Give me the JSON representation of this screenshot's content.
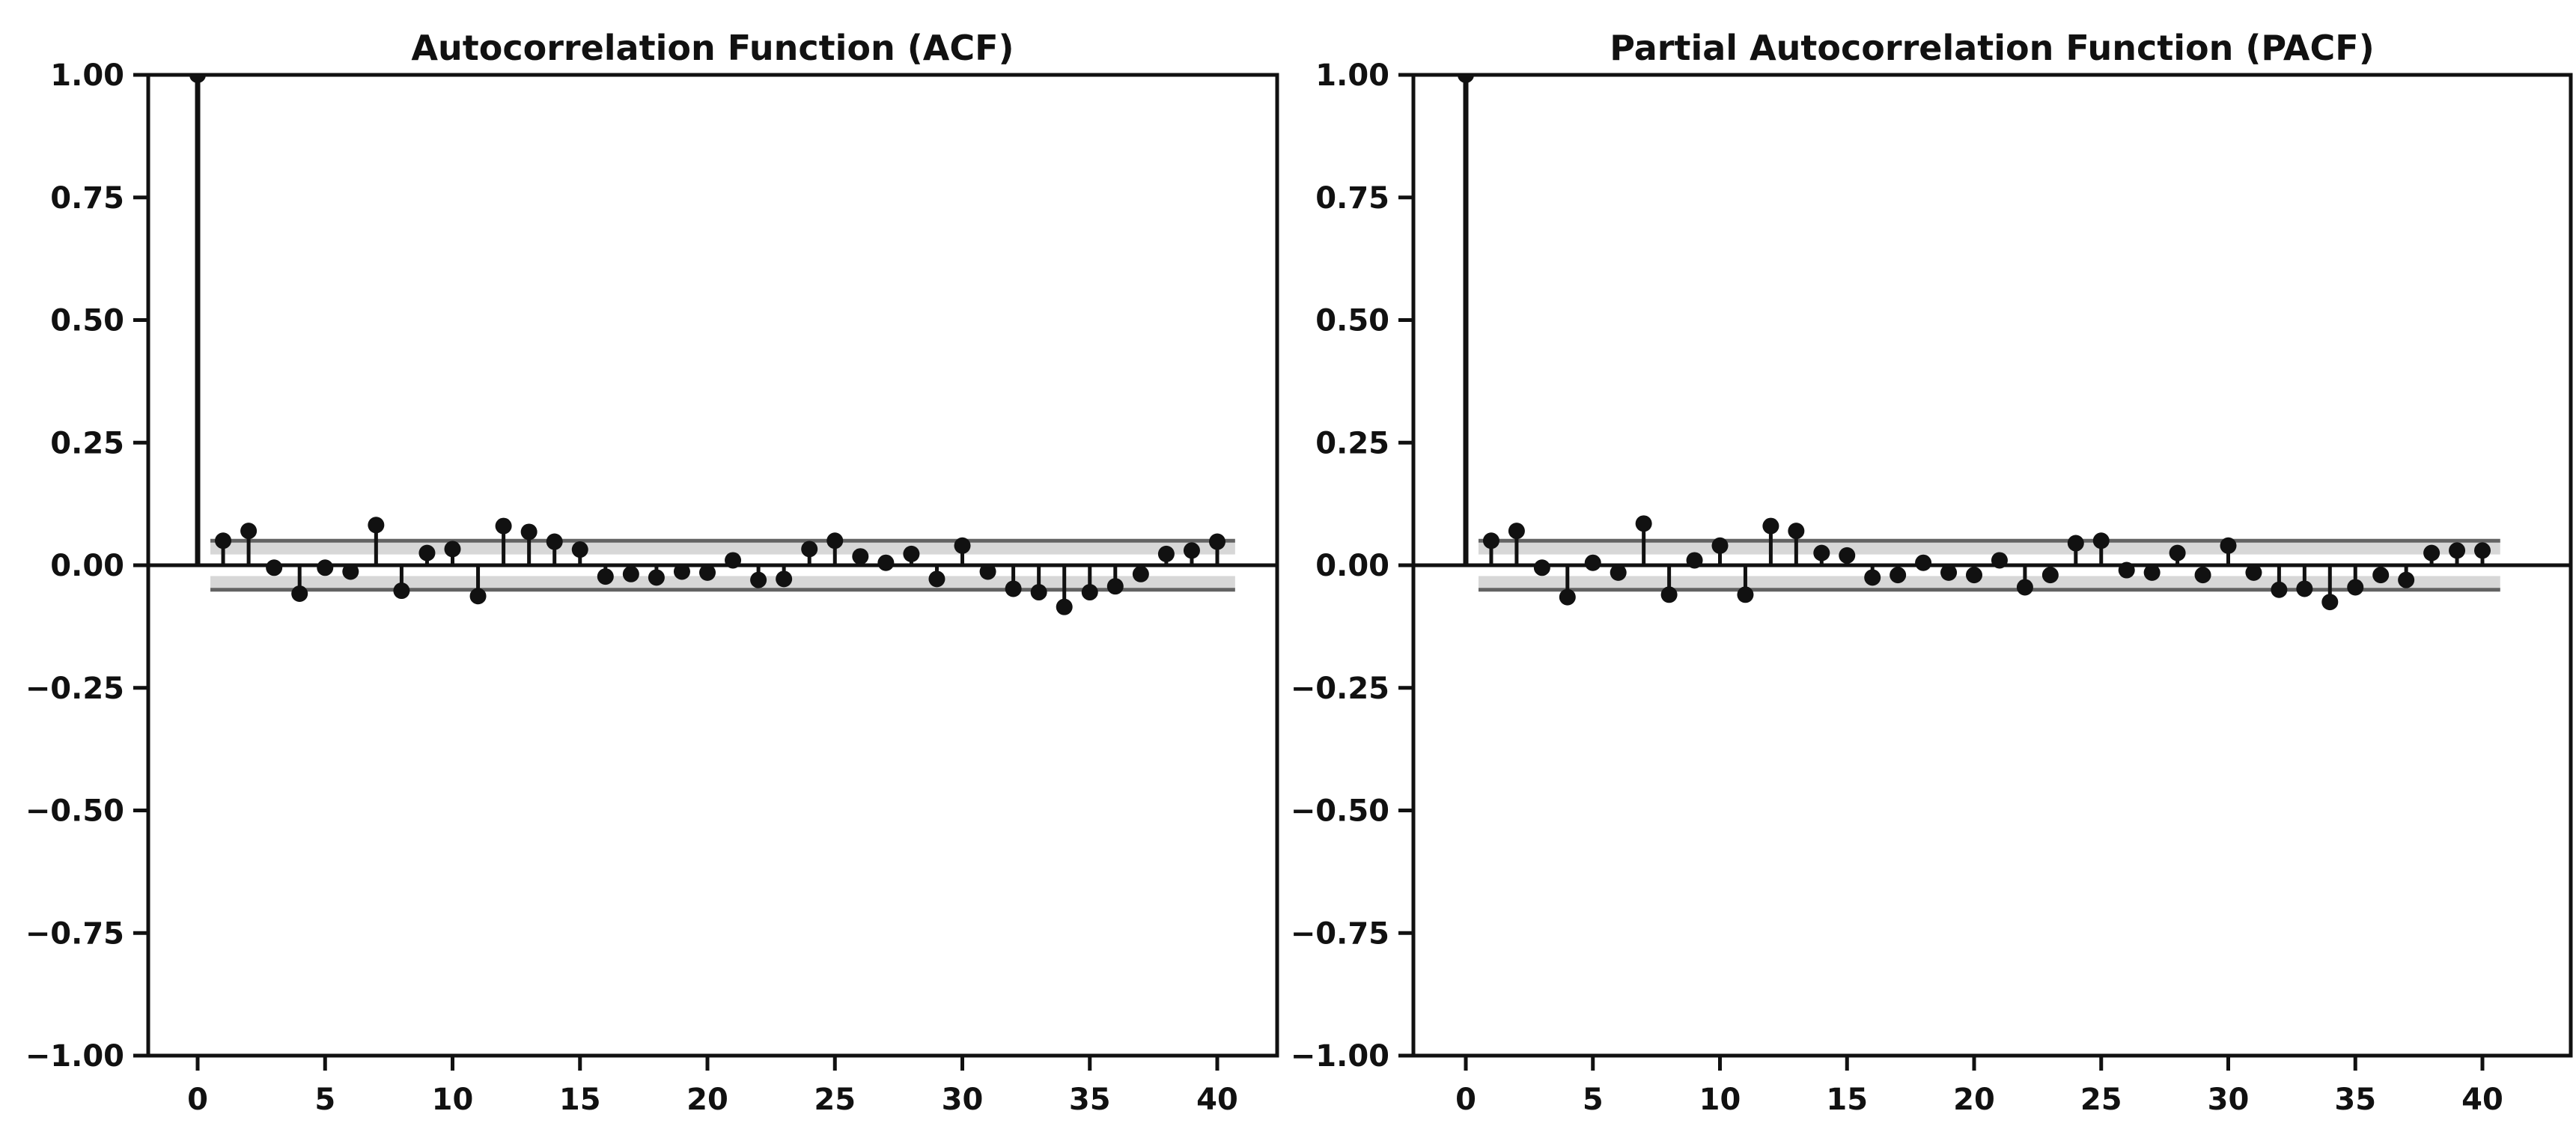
{
  "figure": {
    "background": "#ffffff"
  },
  "style": {
    "ink": "#111111",
    "band_fill": "#d7d7d7",
    "band_edge": "#636363"
  },
  "chart_data": [
    {
      "type": "stem",
      "title": "Autocorrelation Function (ACF)",
      "xlabel": "",
      "ylabel": "",
      "xlim": [
        -2,
        42.4
      ],
      "ylim": [
        -1,
        1
      ],
      "x_ticks": [
        0,
        5,
        10,
        15,
        20,
        25,
        30,
        35,
        40
      ],
      "x_tick_labels": [
        "0",
        "5",
        "10",
        "15",
        "20",
        "25",
        "30",
        "35",
        "40"
      ],
      "y_ticks": [
        1.0,
        0.75,
        0.5,
        0.25,
        0.0,
        -0.25,
        -0.5,
        -0.75,
        -1.0
      ],
      "y_tick_labels": [
        "1.00",
        "0.75",
        "0.50",
        "0.25",
        "0.00",
        "−0.25",
        "−0.50",
        "−0.75",
        "−1.00"
      ],
      "confidence_band": {
        "lower": -0.05,
        "upper": 0.05
      },
      "lags": [
        0,
        1,
        2,
        3,
        4,
        5,
        6,
        7,
        8,
        9,
        10,
        11,
        12,
        13,
        14,
        15,
        16,
        17,
        18,
        19,
        20,
        21,
        22,
        23,
        24,
        25,
        26,
        27,
        28,
        29,
        30,
        31,
        32,
        33,
        34,
        35,
        36,
        37,
        38,
        39,
        40
      ],
      "values": [
        1.0,
        0.05,
        0.07,
        -0.005,
        -0.058,
        -0.005,
        -0.013,
        0.082,
        -0.052,
        0.025,
        0.033,
        -0.063,
        0.08,
        0.068,
        0.048,
        0.032,
        -0.023,
        -0.018,
        -0.025,
        -0.013,
        -0.015,
        0.01,
        -0.03,
        -0.028,
        0.033,
        0.05,
        0.018,
        0.005,
        0.023,
        -0.028,
        0.04,
        -0.013,
        -0.048,
        -0.055,
        -0.085,
        -0.055,
        -0.043,
        -0.018,
        0.023,
        0.03,
        0.048
      ]
    },
    {
      "type": "stem",
      "title": "Partial Autocorrelation Function (PACF)",
      "xlabel": "",
      "ylabel": "",
      "xlim": [
        -2,
        43.5
      ],
      "ylim": [
        -1,
        1
      ],
      "x_ticks": [
        0,
        5,
        10,
        15,
        20,
        25,
        30,
        35,
        40
      ],
      "x_tick_labels": [
        "0",
        "5",
        "10",
        "15",
        "20",
        "25",
        "30",
        "35",
        "40"
      ],
      "y_ticks": [
        1.0,
        0.75,
        0.5,
        0.25,
        0.0,
        -0.25,
        -0.5,
        -0.75,
        -1.0
      ],
      "y_tick_labels": [
        "1.00",
        "0.75",
        "0.50",
        "0.25",
        "0.00",
        "−0.25",
        "−0.50",
        "−0.75",
        "−1.00"
      ],
      "confidence_band": {
        "lower": -0.05,
        "upper": 0.05
      },
      "lags": [
        0,
        1,
        2,
        3,
        4,
        5,
        6,
        7,
        8,
        9,
        10,
        11,
        12,
        13,
        14,
        15,
        16,
        17,
        18,
        19,
        20,
        21,
        22,
        23,
        24,
        25,
        26,
        27,
        28,
        29,
        30,
        31,
        32,
        33,
        34,
        35,
        36,
        37,
        38,
        39,
        40
      ],
      "values": [
        1.0,
        0.05,
        0.07,
        -0.005,
        -0.065,
        0.005,
        -0.015,
        0.085,
        -0.06,
        0.01,
        0.04,
        -0.06,
        0.08,
        0.07,
        0.025,
        0.02,
        -0.025,
        -0.02,
        0.005,
        -0.015,
        -0.02,
        0.01,
        -0.045,
        -0.02,
        0.045,
        0.05,
        -0.01,
        -0.015,
        0.025,
        -0.02,
        0.04,
        -0.015,
        -0.05,
        -0.048,
        -0.075,
        -0.045,
        -0.02,
        -0.03,
        0.025,
        0.03,
        0.03
      ]
    }
  ]
}
